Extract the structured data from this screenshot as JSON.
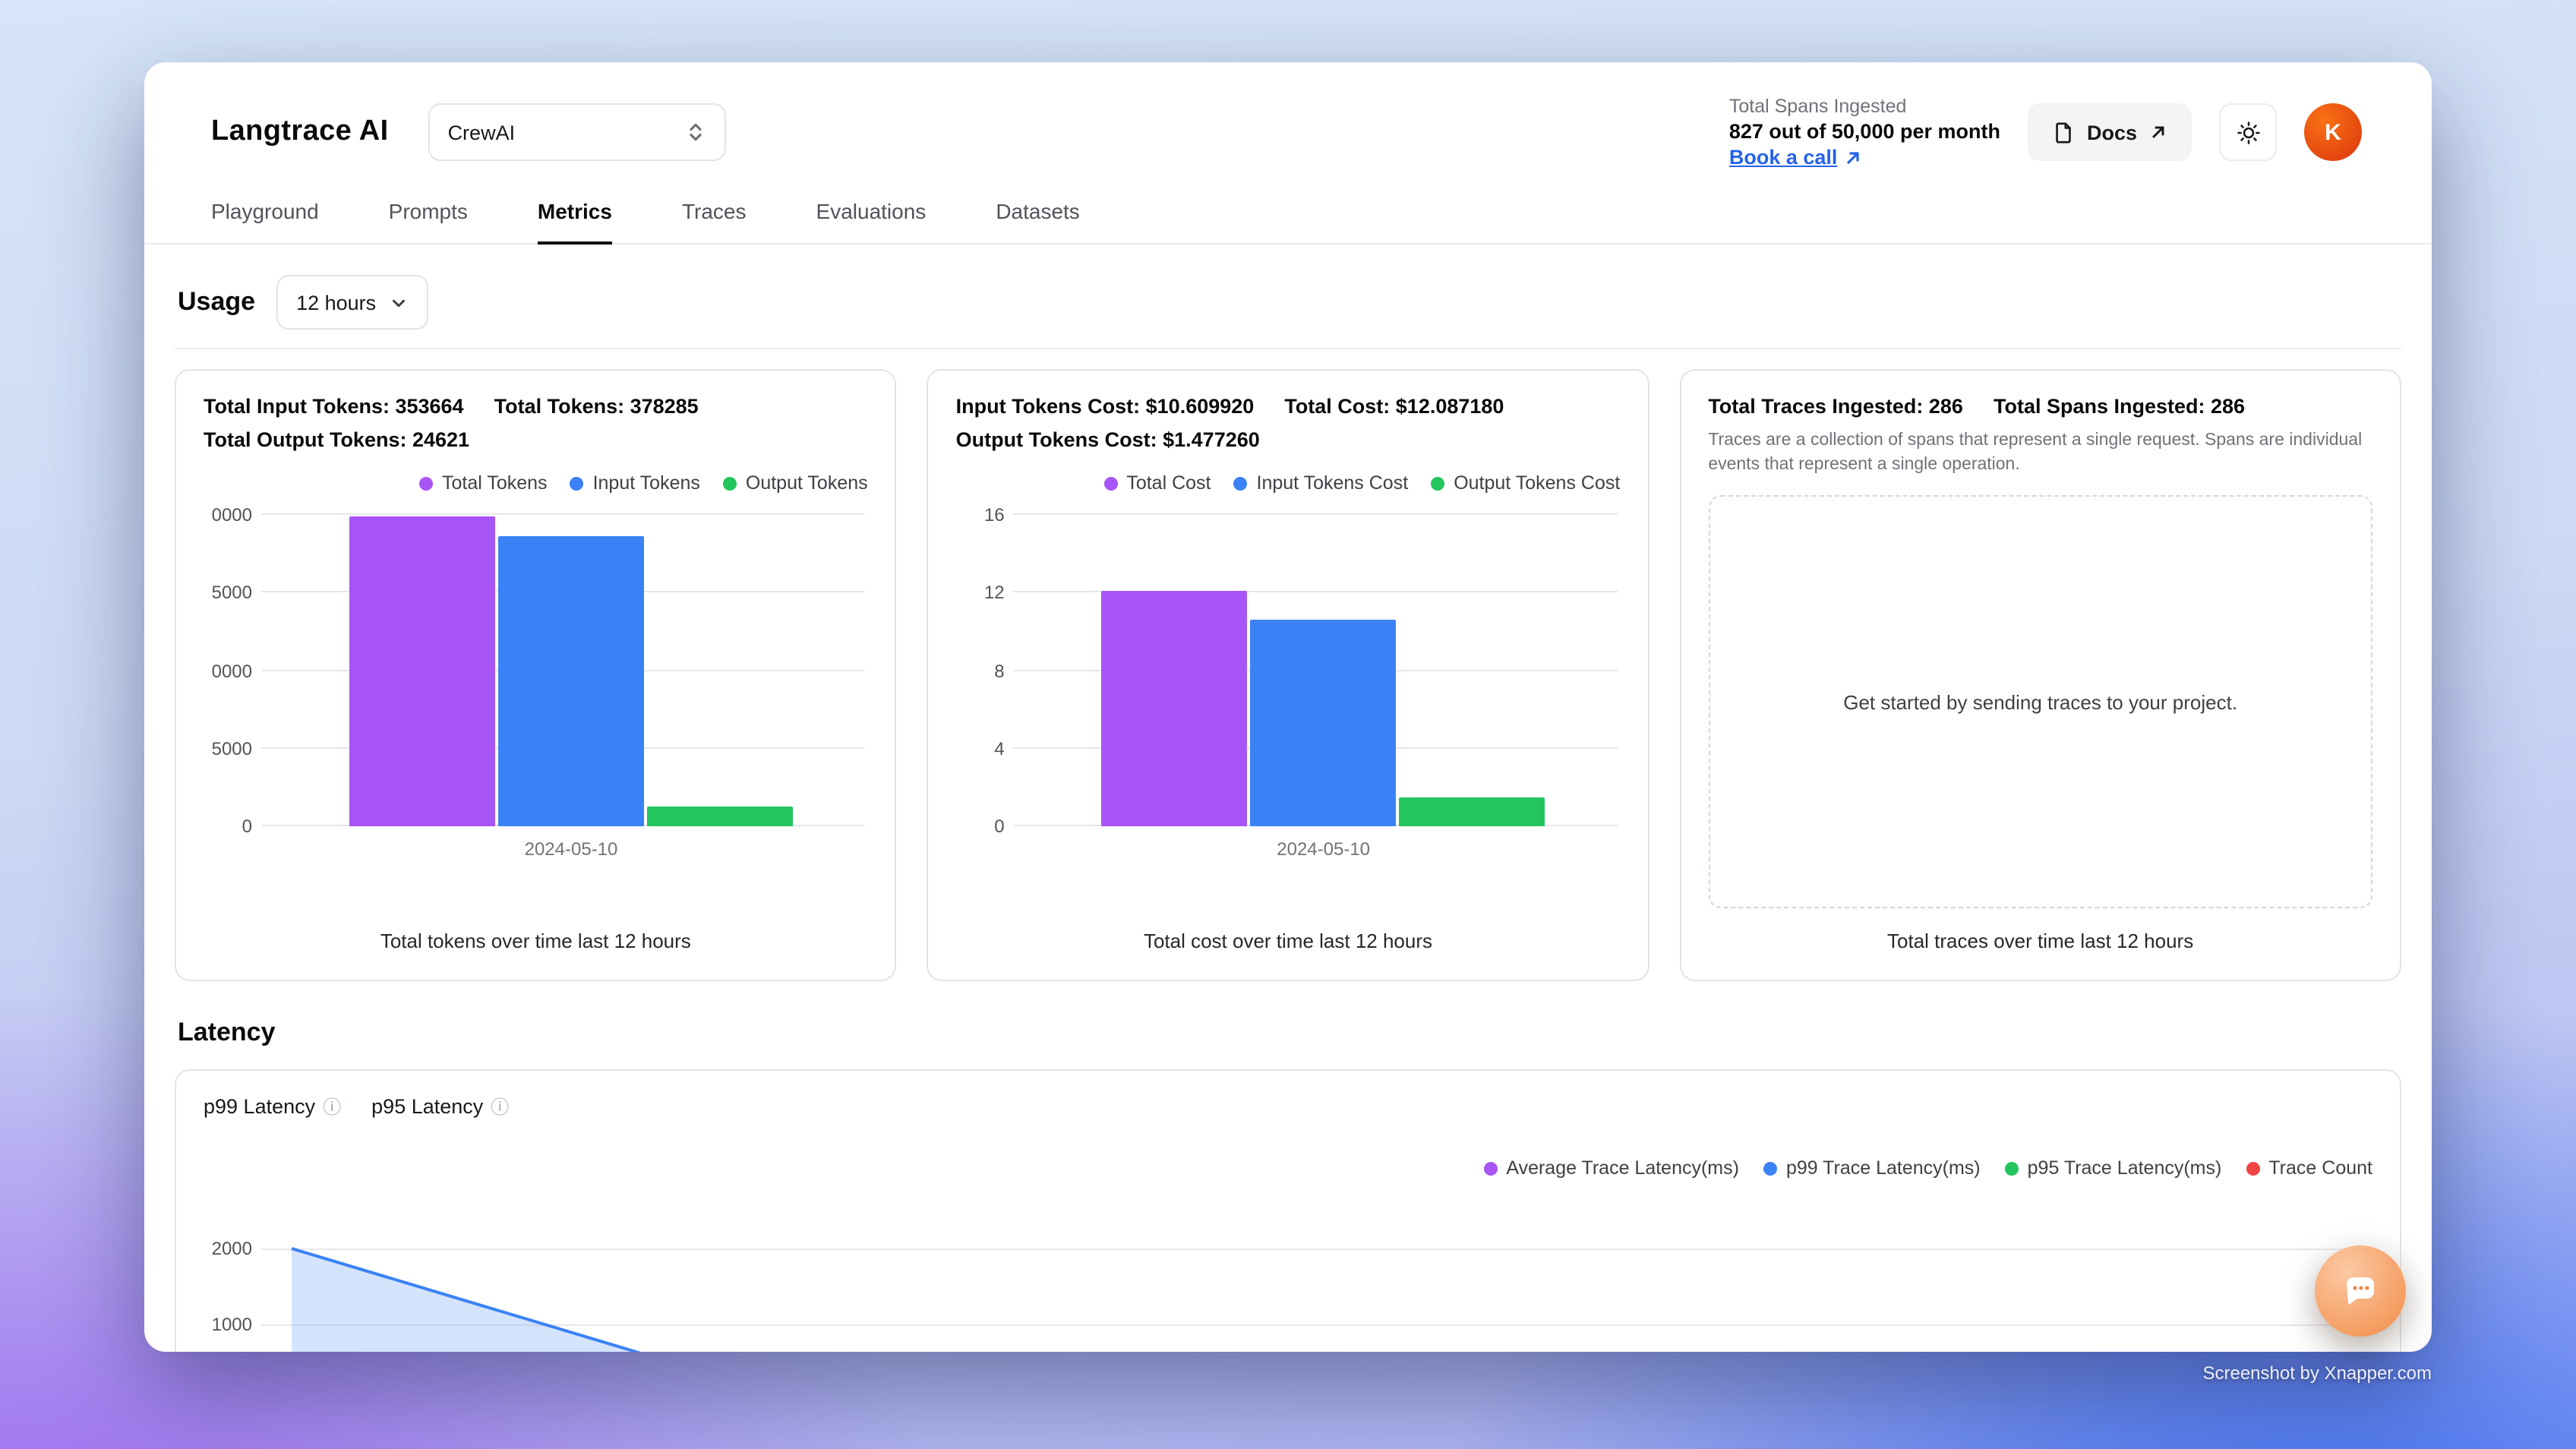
{
  "header": {
    "brand": "Langtrace AI",
    "project_selector": {
      "value": "CrewAI"
    },
    "spans": {
      "label": "Total Spans Ingested",
      "value": "827 out of 50,000 per month",
      "book_call": "Book a call"
    },
    "docs_button": "Docs",
    "avatar_initial": "K"
  },
  "nav": {
    "tabs": [
      {
        "label": "Playground",
        "active": false
      },
      {
        "label": "Prompts",
        "active": false
      },
      {
        "label": "Metrics",
        "active": true
      },
      {
        "label": "Traces",
        "active": false
      },
      {
        "label": "Evaluations",
        "active": false
      },
      {
        "label": "Datasets",
        "active": false
      }
    ]
  },
  "usage": {
    "title": "Usage",
    "range": "12 hours",
    "tokens_card": {
      "stats": [
        "Total Input Tokens: 353664",
        "Total Tokens: 378285",
        "Total Output Tokens: 24621"
      ],
      "caption": "Total tokens over time last 12 hours"
    },
    "cost_card": {
      "stats": [
        "Input Tokens Cost: $10.609920",
        "Total Cost: $12.087180",
        "Output Tokens Cost: $1.477260"
      ],
      "caption": "Total cost over time last 12 hours"
    },
    "traces_card": {
      "stats": [
        "Total Traces Ingested: 286",
        "Total Spans Ingested: 286"
      ],
      "description": "Traces are a collection of spans that represent a single request. Spans are individual events that represent a single operation.",
      "empty_state": "Get started by sending traces to your project.",
      "caption": "Total traces over time last 12 hours"
    }
  },
  "latency": {
    "title": "Latency",
    "p99_label": "p99 Latency",
    "p95_label": "p95 Latency"
  },
  "overlay": {
    "credit": "Screenshot by Xnapper.com"
  },
  "chart_data": [
    {
      "type": "bar",
      "title": "Total tokens over time last 12 hours",
      "categories": [
        "2024-05-10"
      ],
      "series": [
        {
          "name": "Total Tokens",
          "color": "#a855f7",
          "values": [
            378285
          ]
        },
        {
          "name": "Input Tokens",
          "color": "#3b82f6",
          "values": [
            353664
          ]
        },
        {
          "name": "Output Tokens",
          "color": "#22c55e",
          "values": [
            24621
          ]
        }
      ],
      "ylim": [
        0,
        380000
      ],
      "y_ticks": [
        0,
        95000,
        190000,
        285000,
        380000
      ],
      "y_tick_labels_visible": [
        "0",
        "5000",
        "0000",
        "5000",
        "0000"
      ],
      "legend_position": "top-right",
      "grid": true
    },
    {
      "type": "bar",
      "title": "Total cost over time last 12 hours",
      "categories": [
        "2024-05-10"
      ],
      "series": [
        {
          "name": "Total Cost",
          "color": "#a855f7",
          "values": [
            12.08718
          ]
        },
        {
          "name": "Input Tokens Cost",
          "color": "#3b82f6",
          "values": [
            10.60992
          ]
        },
        {
          "name": "Output Tokens Cost",
          "color": "#22c55e",
          "values": [
            1.47726
          ]
        }
      ],
      "ylim": [
        0,
        16
      ],
      "y_ticks": [
        0,
        4,
        8,
        12,
        16
      ],
      "y_tick_labels_visible": [
        "0",
        "4",
        "8",
        "12",
        "16"
      ],
      "legend_position": "top-right",
      "grid": true
    },
    {
      "type": "area",
      "title": "Latency over time last 12 hours",
      "series": [
        {
          "name": "Average Trace Latency(ms)",
          "color": "#a855f7"
        },
        {
          "name": "p99 Trace Latency(ms)",
          "color": "#3b82f6"
        },
        {
          "name": "p95 Trace Latency(ms)",
          "color": "#22c55e"
        },
        {
          "name": "Trace Count",
          "color": "#ef4444"
        }
      ],
      "y_tick_labels_visible": [
        "2000",
        "1000"
      ],
      "note": "Blue p99 latency line descending from upper-left; chart clipped at bottom of viewport"
    }
  ]
}
